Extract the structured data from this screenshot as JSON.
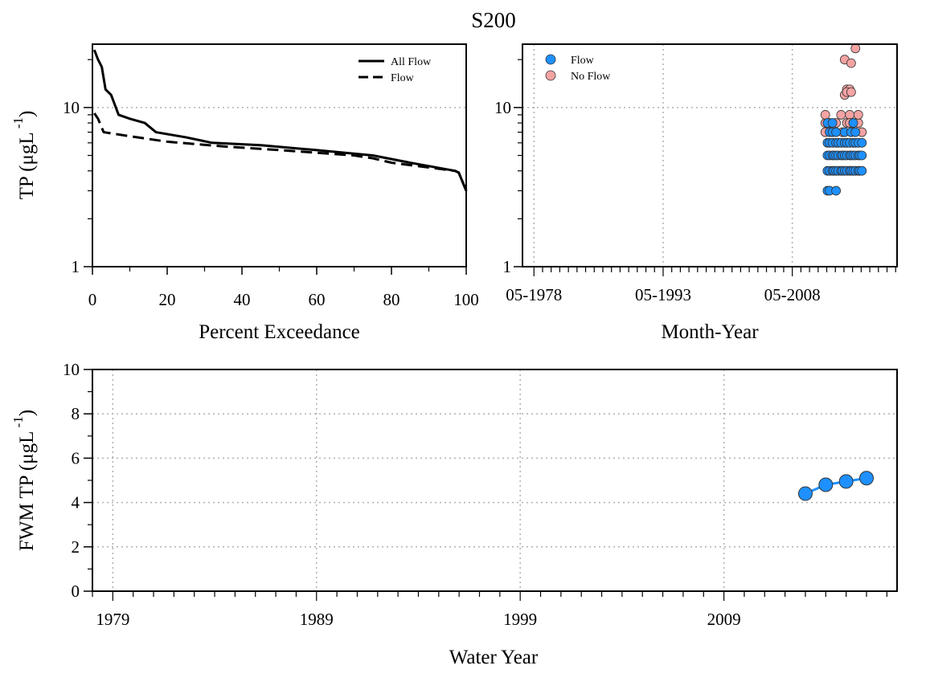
{
  "title": "S200",
  "colors": {
    "flow": "#1e90ff",
    "no_flow": "#f4a3a3",
    "grid": "#b0b0b0",
    "line": "#000000"
  },
  "chart_data": [
    {
      "id": "exceedance",
      "type": "line",
      "xlabel": "Percent Exceedance",
      "ylabel": "TP (μgL",
      "ylabel_sup": "-1",
      "ylabel_close": ")",
      "xlim": [
        0,
        100
      ],
      "ylim": [
        1,
        25
      ],
      "yscale": "log",
      "x_ticks": [
        0,
        20,
        40,
        60,
        80,
        100
      ],
      "x_tick_labels": [
        "0",
        "20",
        "40",
        "60",
        "80",
        "100"
      ],
      "y_ticks": [
        1,
        10
      ],
      "y_tick_labels": [
        "1",
        "10"
      ],
      "grid": "horizontal at 10 (dotted)",
      "legend_position": "top-right",
      "series": [
        {
          "name": "All Flow",
          "style": "solid",
          "x": [
            0.5,
            1.5,
            2.5,
            3.5,
            5,
            7,
            10,
            14,
            17,
            25,
            32,
            45,
            60,
            75,
            85,
            97,
            98,
            100
          ],
          "y": [
            23,
            20,
            18,
            13,
            12,
            9,
            8.5,
            8,
            7,
            6.5,
            6,
            5.8,
            5.4,
            5,
            4.5,
            4,
            3.9,
            3
          ]
        },
        {
          "name": "Flow",
          "style": "dashed",
          "x": [
            0.5,
            1.5,
            3,
            10,
            20,
            35,
            50,
            60,
            70,
            75,
            80,
            90,
            97,
            98,
            100
          ],
          "y": [
            9.2,
            8.5,
            7,
            6.6,
            6.1,
            5.7,
            5.4,
            5.2,
            5,
            4.8,
            4.5,
            4.2,
            4,
            3.9,
            3
          ]
        }
      ]
    },
    {
      "id": "timeseries",
      "type": "scatter",
      "xlabel": "Month-Year",
      "ylabel": "",
      "yscale": "log",
      "ylim": [
        1,
        25
      ],
      "xlim": [
        "1977-01",
        "2020-07"
      ],
      "x_tick_labels": [
        "05-1978",
        "05-1993",
        "05-2008"
      ],
      "y_ticks": [
        1,
        10
      ],
      "y_tick_labels": [
        "1",
        "10"
      ],
      "grid": "dotted at each labeled tick",
      "legend_position": "top-left",
      "series": [
        {
          "name": "Flow",
          "color": "#1e90ff",
          "x": [
            "2012-06",
            "2012-09",
            "2013-01",
            "2013-03",
            "2013-06",
            "2013-09",
            "2014-01",
            "2014-03",
            "2014-06",
            "2014-09",
            "2015-01",
            "2015-03",
            "2015-06",
            "2015-09",
            "2016-01",
            "2016-03",
            "2016-06",
            "2012-06",
            "2012-09",
            "2013-01",
            "2013-03",
            "2013-06",
            "2013-09",
            "2014-01",
            "2014-03",
            "2014-06",
            "2014-09",
            "2015-01",
            "2015-03",
            "2015-06",
            "2015-09",
            "2016-01",
            "2016-03",
            "2016-06",
            "2012-06",
            "2012-09",
            "2013-01",
            "2013-06",
            "2013-09",
            "2014-01",
            "2014-06",
            "2014-09",
            "2015-01",
            "2015-06",
            "2015-09",
            "2016-01",
            "2016-06",
            "2012-09",
            "2013-01",
            "2013-06",
            "2014-06",
            "2015-03",
            "2015-09",
            "2012-06",
            "2013-01",
            "2015-06",
            "2012-06",
            "2012-09",
            "2013-06"
          ],
          "y": [
            4,
            4,
            4,
            4,
            4,
            4,
            4,
            4,
            4,
            4,
            4,
            4,
            4,
            4,
            4,
            4,
            4,
            5,
            5,
            5,
            5,
            5,
            5,
            5,
            5,
            5,
            5,
            5,
            5,
            5,
            5,
            5,
            5,
            5,
            6,
            6,
            6,
            6,
            6,
            6,
            6,
            6,
            6,
            6,
            6,
            6,
            6,
            7,
            7,
            7,
            7,
            7,
            7,
            8,
            8,
            8,
            3,
            3,
            3
          ]
        },
        {
          "name": "No Flow",
          "color": "#f4a3a3",
          "x": [
            "2014-06",
            "2015-03",
            "2015-09",
            "2014-09",
            "2015-01",
            "2014-06",
            "2014-09",
            "2015-03",
            "2014-01",
            "2015-01",
            "2012-03",
            "2012-09",
            "2013-06",
            "2014-09",
            "2015-01",
            "2015-06",
            "2016-01",
            "2012-03",
            "2013-01",
            "2014-03",
            "2015-03",
            "2016-06",
            "2012-03",
            "2016-01"
          ],
          "y": [
            20,
            19,
            23.5,
            13,
            13,
            12,
            12.5,
            12.5,
            9,
            9,
            8,
            8,
            8,
            8,
            8,
            8,
            8,
            7,
            7,
            7,
            7,
            7,
            9,
            9
          ]
        }
      ]
    },
    {
      "id": "fwm",
      "type": "line",
      "xlabel": "Water Year",
      "ylabel": "FWM TP (μgL",
      "ylabel_sup": "-1",
      "ylabel_close": ")",
      "xlim": [
        1978,
        2017.5
      ],
      "ylim": [
        0,
        10
      ],
      "x_ticks": [
        1979,
        1989,
        1999,
        2009
      ],
      "x_tick_labels": [
        "1979",
        "1989",
        "1999",
        "2009"
      ],
      "y_ticks": [
        0,
        2,
        4,
        6,
        8,
        10
      ],
      "y_tick_labels": [
        "0",
        "2",
        "4",
        "6",
        "8",
        "10"
      ],
      "grid": "dotted at each labeled tick",
      "series": [
        {
          "color": "#1e90ff",
          "x": [
            2013,
            2014,
            2015,
            2016
          ],
          "y": [
            4.4,
            4.8,
            4.95,
            5.1
          ]
        }
      ]
    }
  ]
}
